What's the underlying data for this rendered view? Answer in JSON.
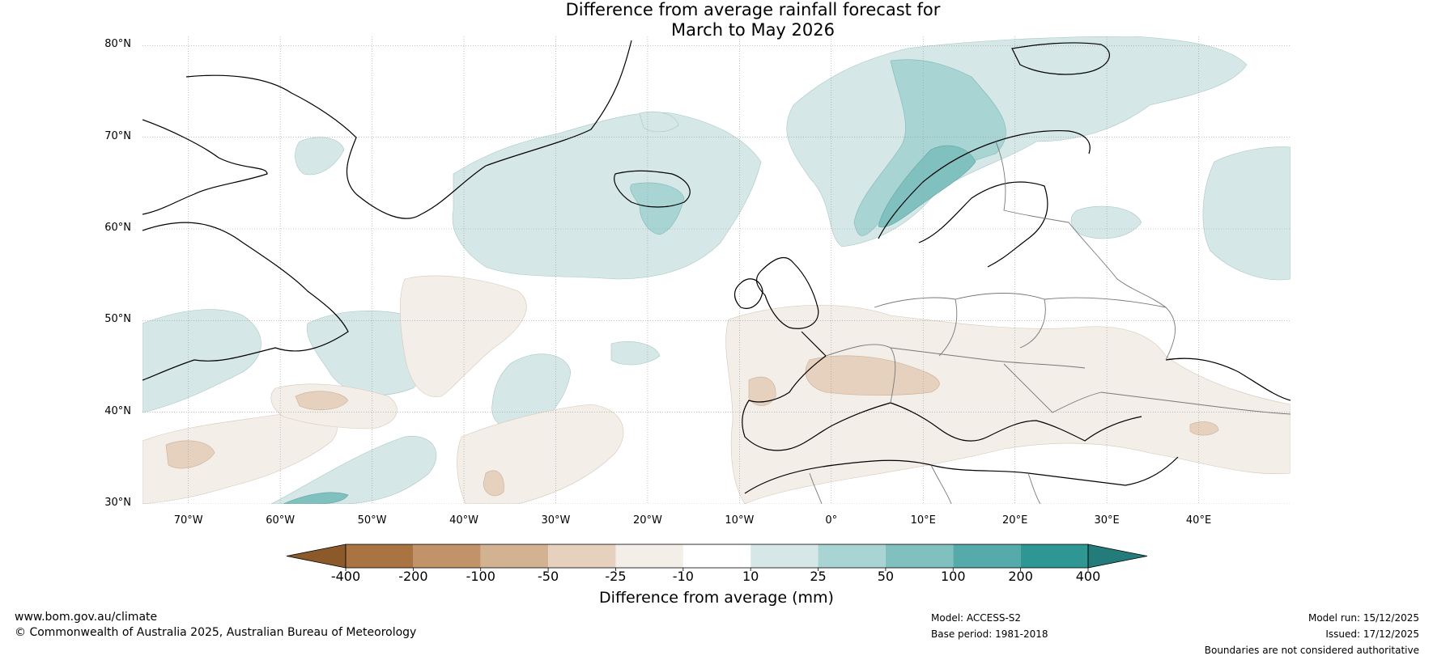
{
  "title": {
    "line1": "Difference from average rainfall forecast for",
    "line2": "March to May 2026"
  },
  "map": {
    "lat_labels": [
      "80°N",
      "70°N",
      "60°N",
      "50°N",
      "40°N",
      "30°N"
    ],
    "lon_labels": [
      "70°W",
      "60°W",
      "50°W",
      "40°W",
      "30°W",
      "20°W",
      "10°W",
      "0°",
      "10°E",
      "20°E",
      "30°E",
      "40°E"
    ],
    "region_lon": [
      -75,
      50
    ],
    "region_lat": [
      30,
      81
    ],
    "colors": {
      "land_outline": "#000000",
      "border": "#777777",
      "grid": "#999999"
    }
  },
  "colorbar": {
    "labels": [
      "-400",
      "-200",
      "-100",
      "-50",
      "-25",
      "-10",
      "10",
      "25",
      "50",
      "100",
      "200",
      "400"
    ],
    "colors": [
      "#8c5a2a",
      "#a97442",
      "#c29268",
      "#d3b292",
      "#e6d1bf",
      "#f3eee8",
      "#ffffff",
      "#d5e8e7",
      "#a9d4d4",
      "#80c0bf",
      "#57aaaa",
      "#2e9693",
      "#237b7a"
    ],
    "title": "Difference from average (mm)"
  },
  "footer": {
    "website": "www.bom.gov.au/climate",
    "copyright": "© Commonwealth of Australia 2025, Australian Bureau of Meteorology",
    "model": "Model: ACCESS-S2",
    "base_period": "Base period: 1981-2018",
    "model_run": "Model run: 15/12/2025",
    "issued": "Issued: 17/12/2025",
    "disclaimer": "Boundaries are not considered authoritative"
  }
}
